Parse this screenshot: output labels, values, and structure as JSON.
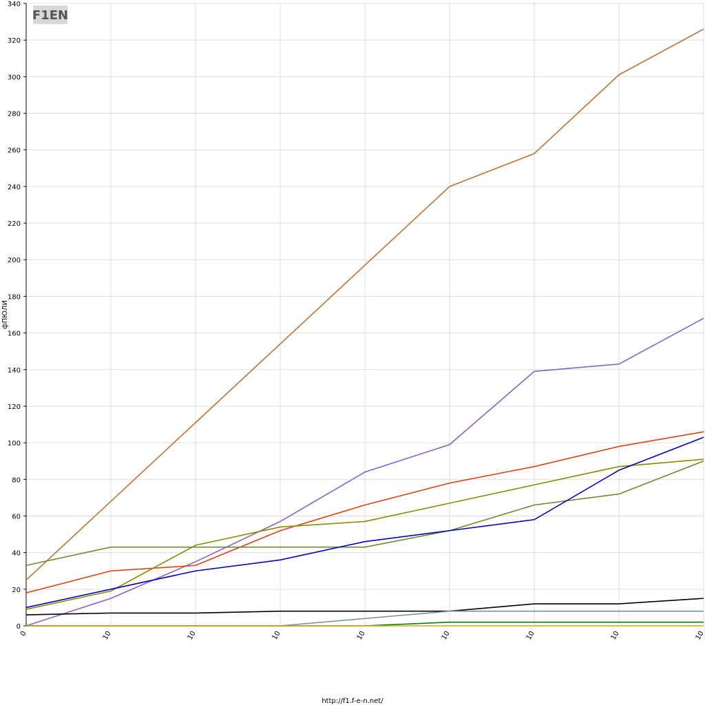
{
  "chart_data": {
    "type": "line",
    "logo": "F1EN",
    "y_label": "фПЮЛИ",
    "footer": "http://f1.f-e-n.net/",
    "categories": [
      "0",
      "10",
      "10",
      "10",
      "10",
      "10",
      "10",
      "10",
      "10"
    ],
    "ylim": [
      0,
      340
    ],
    "yticks": [
      0,
      20,
      40,
      60,
      80,
      100,
      120,
      140,
      160,
      180,
      200,
      220,
      240,
      260,
      280,
      300,
      320,
      340
    ],
    "grid": true,
    "series": [
      {
        "color": "#c07030",
        "values": [
          25,
          68,
          111,
          154,
          197,
          240,
          258,
          301,
          326
        ]
      },
      {
        "color": "#8a60c8",
        "values": [
          0,
          15,
          35,
          57,
          84,
          99,
          139,
          143,
          168
        ]
      },
      {
        "color": "#e04010",
        "values": [
          18,
          30,
          33,
          52,
          66,
          78,
          87,
          98,
          106
        ]
      },
      {
        "color": "#8a8a00",
        "values": [
          9,
          19,
          44,
          54,
          57,
          67,
          77,
          87,
          91
        ]
      },
      {
        "color": "#6a8a2a",
        "values": [
          33,
          43,
          43,
          43,
          43,
          52,
          66,
          72,
          90
        ]
      },
      {
        "color": "#0000c0",
        "values": [
          10,
          20,
          30,
          36,
          46,
          52,
          58,
          85,
          103
        ]
      },
      {
        "color": "#000000",
        "values": [
          6,
          7,
          7,
          8,
          8,
          8,
          12,
          12,
          15
        ]
      },
      {
        "color": "#7890a0",
        "values": [
          0,
          0,
          0,
          0,
          4,
          8,
          8,
          8,
          8
        ]
      },
      {
        "color": "#008000",
        "values": [
          0,
          0,
          0,
          0,
          0,
          2,
          2,
          2,
          2
        ]
      },
      {
        "color": "#e0a000",
        "values": [
          0,
          0,
          0,
          0,
          0,
          0,
          0,
          0,
          0
        ]
      }
    ]
  }
}
